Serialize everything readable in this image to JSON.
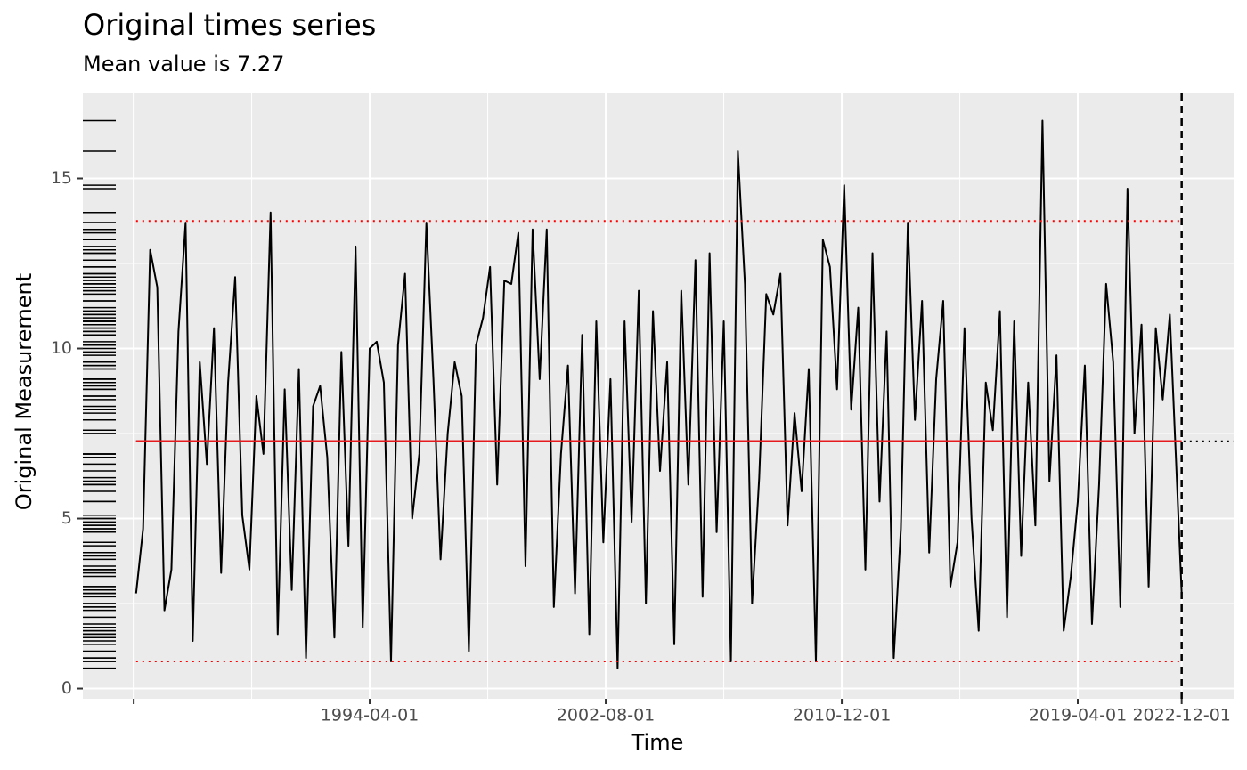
{
  "chart_data": {
    "type": "line",
    "title": "Original times series",
    "subtitle": "Mean value is 7.27",
    "x_label": "Time",
    "y_label": "Original Measurement",
    "color": "#000000",
    "x": [
      "1986-01-01",
      "1986-04-01",
      "1986-07-01",
      "1986-10-01",
      "1987-01-01",
      "1987-04-01",
      "1987-07-01",
      "1987-10-01",
      "1988-01-01",
      "1988-04-01",
      "1988-07-01",
      "1988-10-01",
      "1989-01-01",
      "1989-04-01",
      "1989-07-01",
      "1989-10-01",
      "1990-01-01",
      "1990-04-01",
      "1990-07-01",
      "1990-10-01",
      "1991-01-01",
      "1991-04-01",
      "1991-07-01",
      "1991-10-01",
      "1992-01-01",
      "1992-04-01",
      "1992-07-01",
      "1992-10-01",
      "1993-01-01",
      "1993-04-01",
      "1993-07-01",
      "1993-10-01",
      "1994-01-01",
      "1994-04-01",
      "1994-07-01",
      "1994-10-01",
      "1995-01-01",
      "1995-04-01",
      "1995-07-01",
      "1995-10-01",
      "1996-01-01",
      "1996-04-01",
      "1996-07-01",
      "1996-10-01",
      "1997-01-01",
      "1997-04-01",
      "1997-07-01",
      "1997-10-01",
      "1998-01-01",
      "1998-04-01",
      "1998-07-01",
      "1998-10-01",
      "1999-01-01",
      "1999-04-01",
      "1999-07-01",
      "1999-10-01",
      "2000-01-01",
      "2000-04-01",
      "2000-07-01",
      "2000-10-01",
      "2001-01-01",
      "2001-04-01",
      "2001-07-01",
      "2001-10-01",
      "2002-01-01",
      "2002-04-01",
      "2002-07-01",
      "2002-10-01",
      "2003-01-01",
      "2003-04-01",
      "2003-07-01",
      "2003-10-01",
      "2004-01-01",
      "2004-04-01",
      "2004-07-01",
      "2004-10-01",
      "2005-01-01",
      "2005-04-01",
      "2005-07-01",
      "2005-10-01",
      "2006-01-01",
      "2006-04-01",
      "2006-07-01",
      "2006-10-01",
      "2007-01-01",
      "2007-04-01",
      "2007-07-01",
      "2007-10-01",
      "2008-01-01",
      "2008-04-01",
      "2008-07-01",
      "2008-10-01",
      "2009-01-01",
      "2009-04-01",
      "2009-07-01",
      "2009-10-01",
      "2010-01-01",
      "2010-04-01",
      "2010-07-01",
      "2010-10-01",
      "2011-01-01",
      "2011-04-01",
      "2011-07-01",
      "2011-10-01",
      "2012-01-01",
      "2012-04-01",
      "2012-07-01",
      "2012-10-01",
      "2013-01-01",
      "2013-04-01",
      "2013-07-01",
      "2013-10-01",
      "2014-01-01",
      "2014-04-01",
      "2014-07-01",
      "2014-10-01",
      "2015-01-01",
      "2015-04-01",
      "2015-07-01",
      "2015-10-01",
      "2016-01-01",
      "2016-04-01",
      "2016-07-01",
      "2016-10-01",
      "2017-01-01",
      "2017-04-01",
      "2017-07-01",
      "2017-10-01",
      "2018-01-01",
      "2018-04-01",
      "2018-07-01",
      "2018-10-01",
      "2019-01-01",
      "2019-04-01",
      "2019-07-01",
      "2019-10-01",
      "2020-01-01",
      "2020-04-01",
      "2020-07-01",
      "2020-10-01",
      "2021-01-01",
      "2021-04-01",
      "2021-07-01",
      "2021-10-01",
      "2022-01-01",
      "2022-04-01",
      "2022-07-01",
      "2022-12-01"
    ],
    "values": [
      2.8,
      4.7,
      12.9,
      11.8,
      2.3,
      3.5,
      10.5,
      13.7,
      1.4,
      9.6,
      6.6,
      10.6,
      3.4,
      9.0,
      12.1,
      5.1,
      3.5,
      8.6,
      6.9,
      14.0,
      1.6,
      8.8,
      2.9,
      9.4,
      0.9,
      8.3,
      8.9,
      6.8,
      1.5,
      9.9,
      4.2,
      13.0,
      1.8,
      10.0,
      10.2,
      9.0,
      0.8,
      10.1,
      12.2,
      5.0,
      6.9,
      13.7,
      9.1,
      3.8,
      7.5,
      9.6,
      8.6,
      1.1,
      10.1,
      10.9,
      12.4,
      6.0,
      12.0,
      11.9,
      13.4,
      3.6,
      13.5,
      9.1,
      13.5,
      2.4,
      6.9,
      9.5,
      2.8,
      10.4,
      1.6,
      10.8,
      4.3,
      9.1,
      0.6,
      10.8,
      4.9,
      11.7,
      2.5,
      11.1,
      6.4,
      9.6,
      1.3,
      11.7,
      6.0,
      12.6,
      2.7,
      12.8,
      4.6,
      10.8,
      0.8,
      15.8,
      11.9,
      2.5,
      6.2,
      11.6,
      11.0,
      12.2,
      4.8,
      8.1,
      5.8,
      9.4,
      0.8,
      13.2,
      12.4,
      8.8,
      14.8,
      8.2,
      11.2,
      3.5,
      12.8,
      5.5,
      10.5,
      0.9,
      4.7,
      13.7,
      7.9,
      11.4,
      4.0,
      9.1,
      11.4,
      3.0,
      4.3,
      10.6,
      5.0,
      1.7,
      9.0,
      7.6,
      11.1,
      2.1,
      10.8,
      3.9,
      9.0,
      4.8,
      16.7,
      6.1,
      9.8,
      1.7,
      3.3,
      5.5,
      9.5,
      1.9,
      6.0,
      11.9,
      9.6,
      2.4,
      14.7,
      7.5,
      10.7,
      3.0,
      10.6,
      8.5,
      11.0,
      2.8
    ],
    "mean": 7.27,
    "upper": 13.75,
    "lower": 0.8,
    "vline": "2022-12-01",
    "xlim": [
      "1984-02-14",
      "2024-10-01"
    ],
    "xticks": [
      {
        "value": "1985-12-01",
        "label": null
      },
      "1994-04-01",
      "2002-08-01",
      "2010-12-01",
      "2019-04-01",
      "2022-12-01"
    ],
    "ylim": [
      -0.3,
      17.5
    ],
    "yticks": [
      0,
      5,
      10,
      15
    ],
    "grid": true
  }
}
